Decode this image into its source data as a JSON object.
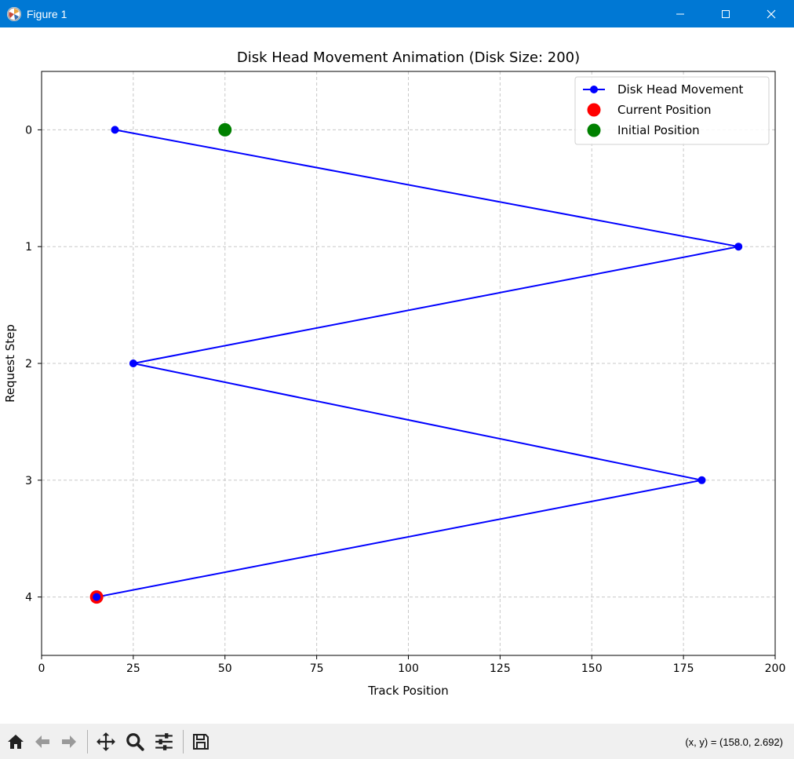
{
  "window": {
    "title": "Figure 1",
    "title_bar_color": "#0078d4"
  },
  "toolbar": {
    "buttons": [
      "home-icon",
      "back-icon",
      "forward-icon",
      "pan-icon",
      "zoom-icon",
      "configure-icon",
      "save-icon"
    ],
    "coords_text": "(x, y) = (158.0, 2.692)"
  },
  "chart_data": {
    "type": "line",
    "title": "Disk Head Movement Animation (Disk Size: 200)",
    "xlabel": "Track Position",
    "ylabel": "Request Step",
    "xlim": [
      0,
      200
    ],
    "ylim": [
      4.5,
      -0.5
    ],
    "y_inverted": true,
    "xticks": [
      0,
      25,
      50,
      75,
      100,
      125,
      150,
      175,
      200
    ],
    "yticks": [
      0,
      1,
      2,
      3,
      4
    ],
    "grid": true,
    "grid_style": "dashed",
    "legend_placement": "top-right",
    "series": [
      {
        "name": "Disk Head Movement",
        "color": "#0000ff",
        "marker": "circle",
        "x": [
          20,
          190,
          25,
          180,
          15
        ],
        "y": [
          0,
          1,
          2,
          3,
          4
        ]
      }
    ],
    "points": [
      {
        "name": "Current Position",
        "color": "#ff0000",
        "x": 15,
        "y": 4
      },
      {
        "name": "Initial Position",
        "color": "#008000",
        "x": 50,
        "y": 0
      }
    ]
  }
}
